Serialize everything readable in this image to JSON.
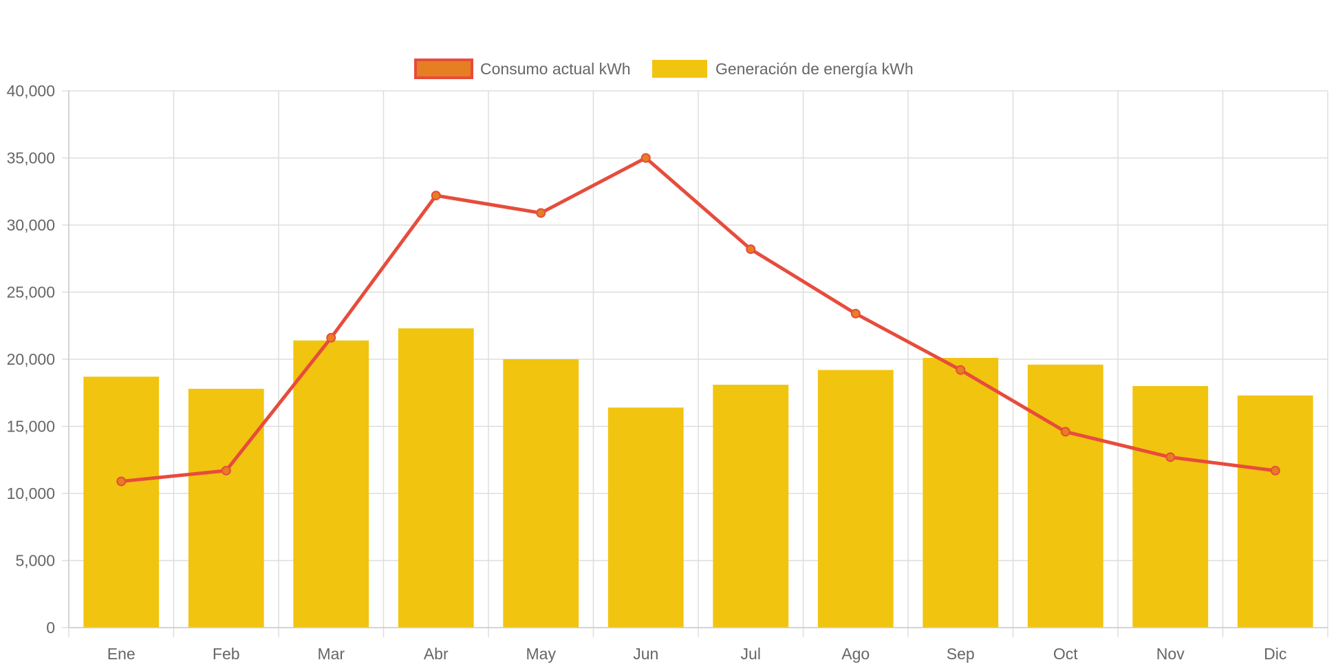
{
  "chart_data": {
    "type": "bar",
    "categories": [
      "Ene",
      "Feb",
      "Mar",
      "Abr",
      "May",
      "Jun",
      "Jul",
      "Ago",
      "Sep",
      "Oct",
      "Nov",
      "Dic"
    ],
    "series": [
      {
        "name": "Consumo actual kWh",
        "type": "line",
        "color": "#e74c3c",
        "point_fill": "#e67e22",
        "values": [
          10900,
          11700,
          21600,
          32200,
          30900,
          35000,
          28200,
          23400,
          19200,
          14600,
          12700,
          11700
        ]
      },
      {
        "name": "Generación de energía kWh",
        "type": "bar",
        "color": "#f1c40f",
        "values": [
          18700,
          17800,
          21400,
          22300,
          20000,
          16400,
          18100,
          19200,
          20100,
          19600,
          18000,
          17300
        ]
      }
    ],
    "title": "",
    "xlabel": "",
    "ylabel": "",
    "ylim": [
      0,
      40000
    ],
    "yticks": [
      "0",
      "5,000",
      "10,000",
      "15,000",
      "20,000",
      "25,000",
      "30,000",
      "35,000",
      "40,000"
    ],
    "grid": true,
    "legend_position": "top-center"
  }
}
